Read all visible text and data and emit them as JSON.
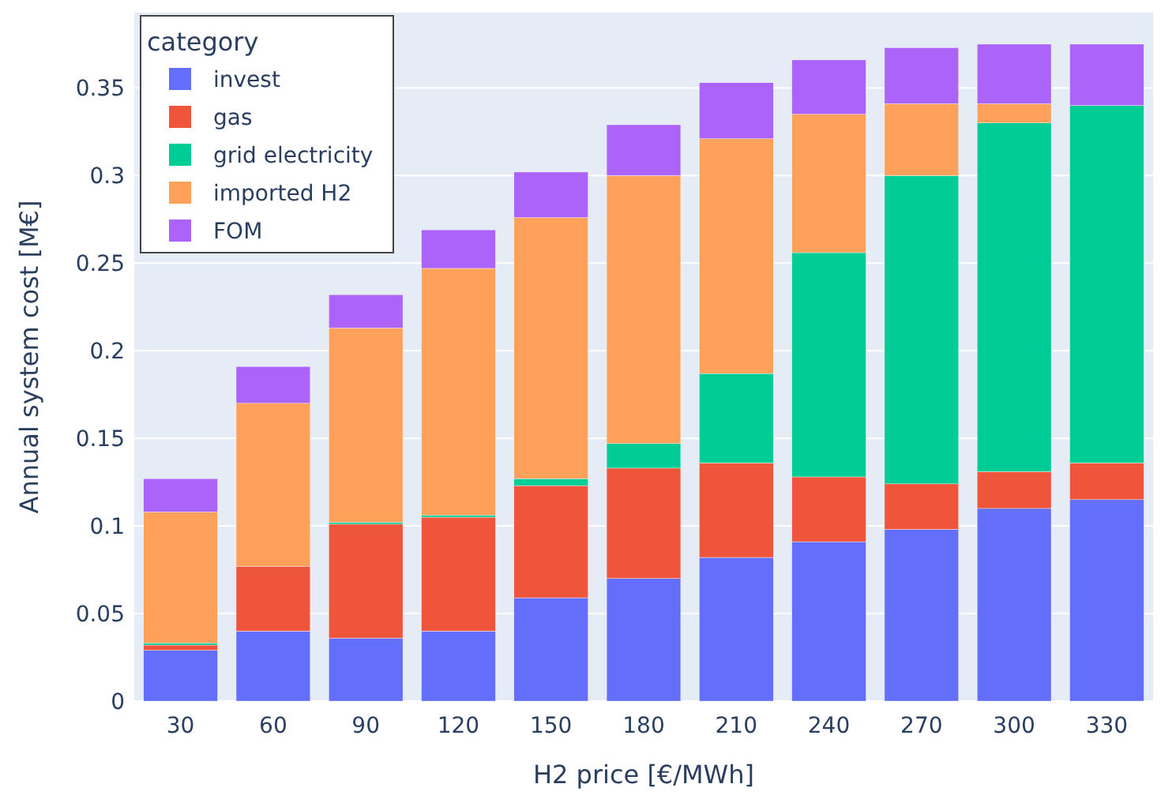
{
  "chart_data": {
    "type": "bar",
    "stacked": true,
    "xlabel": "H2 price [€/MWh]",
    "ylabel": "Annual system cost [M€]",
    "legend_title": "category",
    "legend": "top left",
    "grid": true,
    "categories": [
      "30",
      "60",
      "90",
      "120",
      "150",
      "180",
      "210",
      "240",
      "270",
      "300",
      "330"
    ],
    "ylim": [
      0,
      0.393
    ],
    "yticks": [
      0,
      0.05,
      0.1,
      0.15,
      0.2,
      0.25,
      0.3,
      0.35
    ],
    "series": [
      {
        "name": "invest",
        "color": "#636efa",
        "values": [
          0.029,
          0.04,
          0.036,
          0.04,
          0.059,
          0.07,
          0.082,
          0.091,
          0.098,
          0.11,
          0.115
        ]
      },
      {
        "name": "gas",
        "color": "#ef553b",
        "values": [
          0.003,
          0.037,
          0.065,
          0.065,
          0.064,
          0.063,
          0.054,
          0.037,
          0.026,
          0.021,
          0.021
        ]
      },
      {
        "name": "grid electricity",
        "color": "#00cc96",
        "values": [
          0.001,
          0,
          0.001,
          0.001,
          0.004,
          0.014,
          0.051,
          0.128,
          0.176,
          0.199,
          0.204
        ]
      },
      {
        "name": "imported H2",
        "color": "#ffa15a",
        "values": [
          0.075,
          0.093,
          0.111,
          0.141,
          0.149,
          0.153,
          0.134,
          0.079,
          0.041,
          0.011,
          0
        ]
      },
      {
        "name": "FOM",
        "color": "#ab63fa",
        "values": [
          0.019,
          0.021,
          0.019,
          0.022,
          0.026,
          0.029,
          0.032,
          0.031,
          0.032,
          0.034,
          0.035
        ]
      }
    ]
  }
}
